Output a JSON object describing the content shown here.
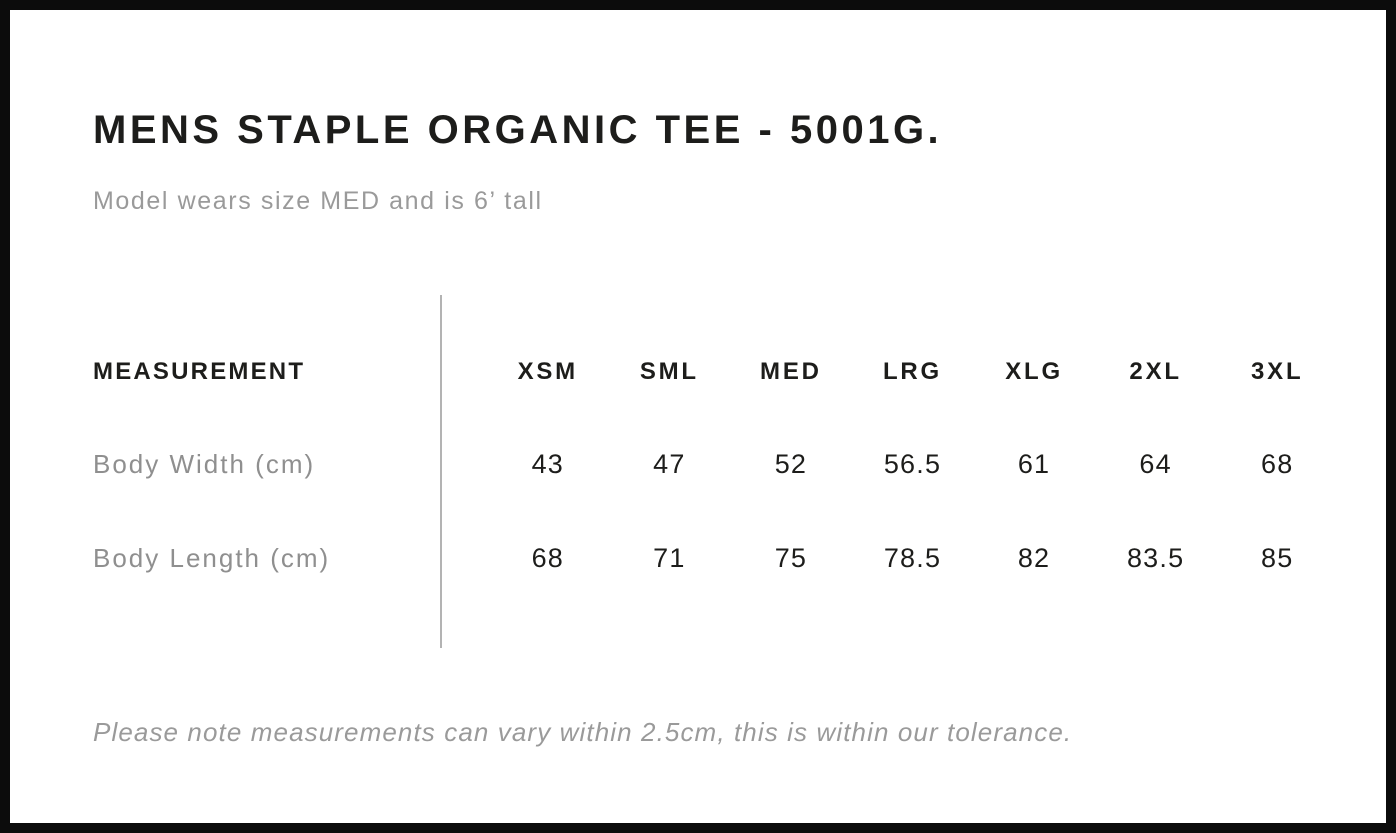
{
  "page": {
    "title": "MENS STAPLE ORGANIC TEE - 5001G.",
    "subtitle": "Model wears size MED and is 6’ tall",
    "footnote": "Please note measurements can vary within 2.5cm, this is within our tolerance."
  },
  "size_chart": {
    "measurement_header": "MEASUREMENT",
    "size_headers": [
      "XSM",
      "SML",
      "MED",
      "LRG",
      "XLG",
      "2XL",
      "3XL"
    ],
    "rows": [
      {
        "label": "Body Width (cm)",
        "values": [
          "43",
          "47",
          "52",
          "56.5",
          "61",
          "64",
          "68"
        ]
      },
      {
        "label": "Body Length (cm)",
        "values": [
          "68",
          "71",
          "75",
          "78.5",
          "82",
          "83.5",
          "85"
        ]
      }
    ]
  },
  "chart_data": {
    "type": "table",
    "title": "MENS STAPLE ORGANIC TEE - 5001G.",
    "subtitle": "Model wears size MED and is 6’ tall",
    "columns": [
      "MEASUREMENT",
      "XSM",
      "SML",
      "MED",
      "LRG",
      "XLG",
      "2XL",
      "3XL"
    ],
    "rows": [
      [
        "Body Width (cm)",
        43,
        47,
        52,
        56.5,
        61,
        64,
        68
      ],
      [
        "Body Length (cm)",
        68,
        71,
        75,
        78.5,
        82,
        83.5,
        85
      ]
    ],
    "note": "Please note measurements can vary within 2.5cm, this is within our tolerance.",
    "layout_hints": {
      "label_column_divider": true,
      "grid": "off"
    }
  },
  "colors": {
    "frame_border": "#0c0c0c",
    "text_dark": "#1d1d1b",
    "text_gray": "#9a9a9a",
    "row_label_gray": "#8f8f8f",
    "divider_gray": "#b3b3b3",
    "background": "#ffffff"
  }
}
